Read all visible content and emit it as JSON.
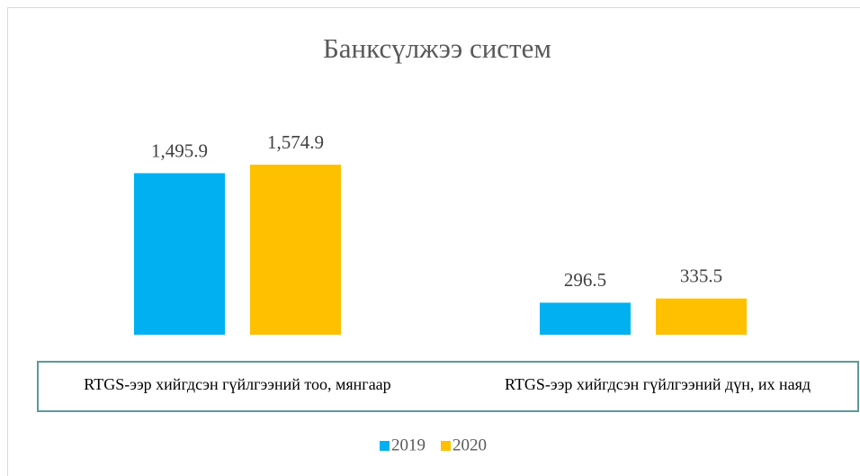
{
  "chart_data": {
    "type": "bar",
    "title": "Банксүлжээ систем",
    "categories": [
      "RTGS-ээр хийгдсэн гүйлгээний тоо, мянгаар",
      "RTGS-ээр хийгдсэн гүйлгээний дүн, их наяд"
    ],
    "series": [
      {
        "name": "2019",
        "color": "#00b0f0",
        "values": [
          1495.9,
          296.5
        ],
        "value_labels": [
          "1,495.9",
          "296.5"
        ]
      },
      {
        "name": "2020",
        "color": "#ffc000",
        "values": [
          1574.9,
          335.5
        ],
        "value_labels": [
          "1,574.9",
          "335.5"
        ]
      }
    ],
    "legend": "bottom"
  }
}
